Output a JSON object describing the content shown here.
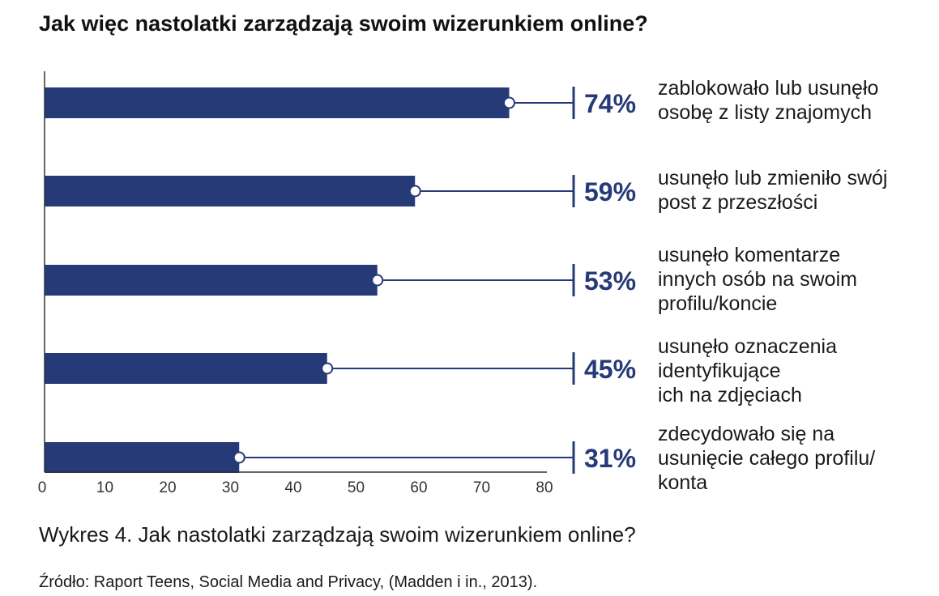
{
  "chart_data": {
    "type": "bar",
    "orientation": "horizontal",
    "title": "Jak więc nastolatki zarządzają swoim wizerunkiem online?",
    "categories": [
      "zablokowało lub usunęło\nosobę z listy znajomych",
      "usunęło lub zmieniło swój\npost z przeszłości",
      "usunęło komentarze\ninnych osób na swoim\nprofilu/koncie",
      "usunęło oznaczenia\nidentyfikujące\nich na zdjęciach",
      "zdecydowało się na\nusunięcie całego profilu/\nkonta"
    ],
    "values": [
      74,
      59,
      53,
      45,
      31
    ],
    "value_labels": [
      "74%",
      "59%",
      "53%",
      "45%",
      "31%"
    ],
    "xlim": [
      0,
      80
    ],
    "xticks": [
      0,
      10,
      20,
      30,
      40,
      50,
      60,
      70,
      80
    ],
    "xlabel": "",
    "ylabel": "",
    "grid": false,
    "bar_color": "#263a78"
  },
  "caption": "Wykres 4. Jak nastolatki zarządzają swoim wizerunkiem online?",
  "source": "Źródło: Raport Teens, Social Media and Privacy, (Madden i in., 2013)."
}
